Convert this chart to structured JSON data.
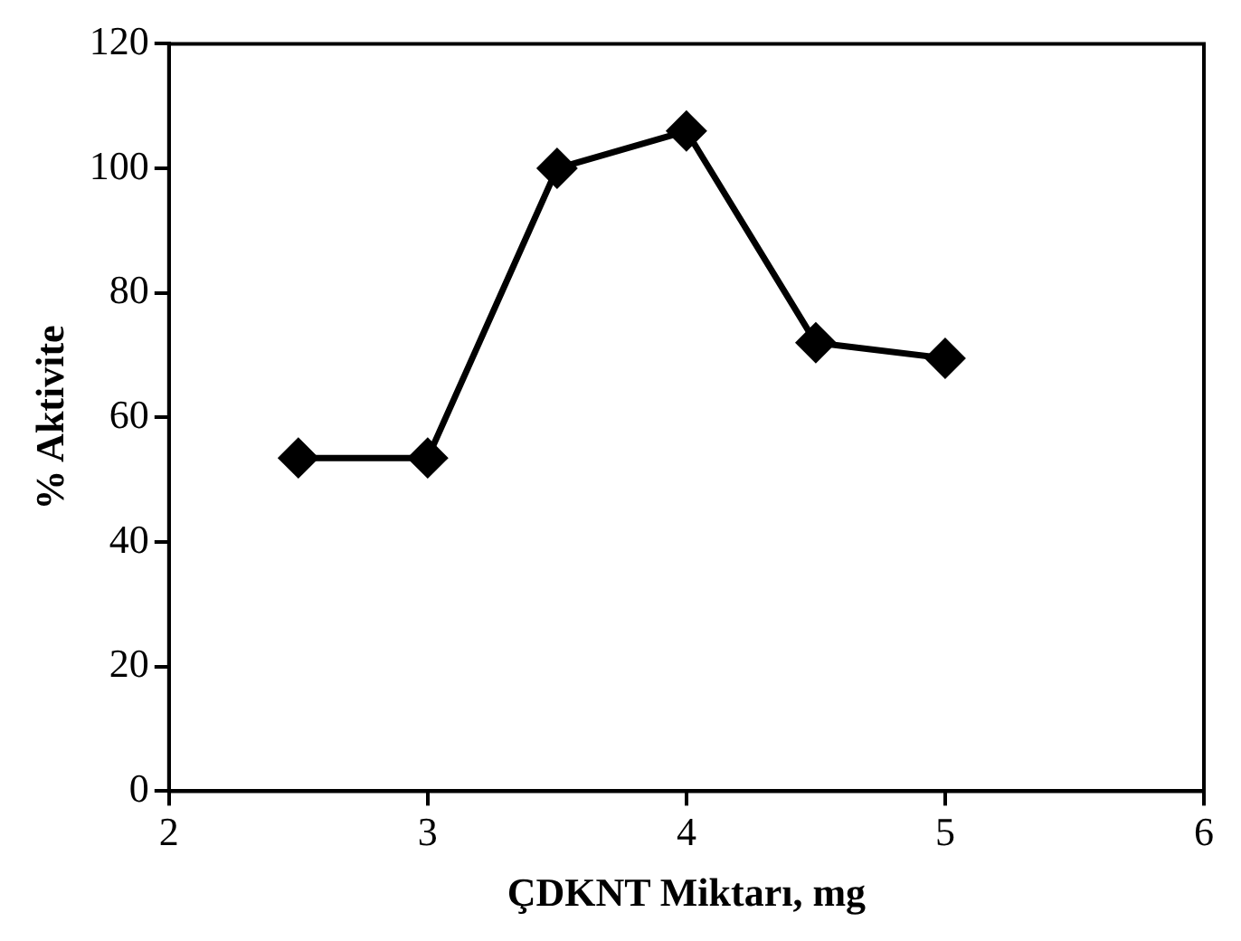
{
  "chart_data": {
    "type": "line",
    "xlabel": "ÇDKNT Miktarı, mg",
    "ylabel": "% Aktivite",
    "x": [
      2.5,
      3,
      3.5,
      4,
      4.5,
      5
    ],
    "series": [
      {
        "color": "#000000",
        "values": [
          53.5,
          53.5,
          100,
          106,
          72,
          69.5
        ]
      }
    ],
    "xlim": [
      2,
      6
    ],
    "xticks": [
      2,
      3,
      4,
      5,
      6
    ],
    "ylim": [
      0,
      120
    ],
    "yticks": [
      0,
      20,
      40,
      60,
      80,
      100,
      120
    ],
    "grid": false,
    "legend": false,
    "marker": "diamond",
    "line_style": "solid"
  }
}
